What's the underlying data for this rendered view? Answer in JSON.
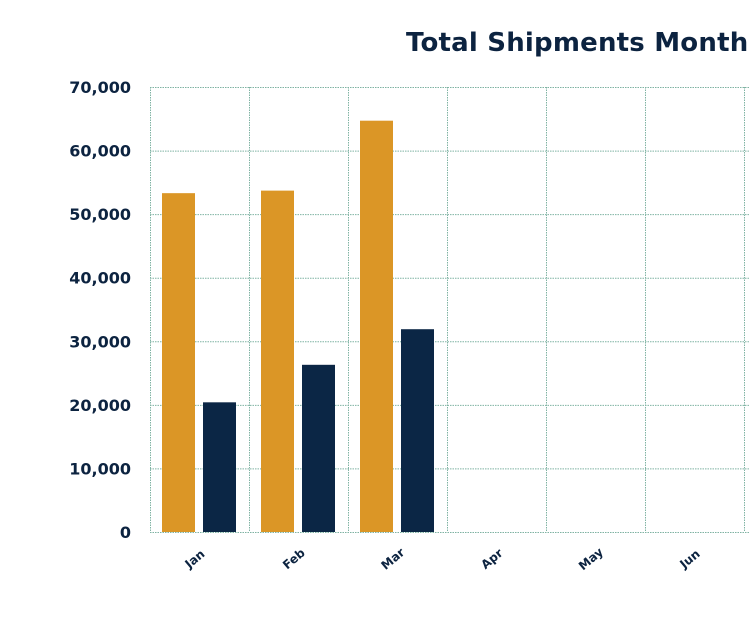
{
  "chart_data": {
    "type": "bar",
    "title": "Total Shipments Month",
    "xlabel": "",
    "ylabel": "",
    "categories": [
      "Jan",
      "Feb",
      "Mar",
      "Apr",
      "May",
      "Jun"
    ],
    "series": [
      {
        "values": [
          53300,
          53700,
          64700,
          null,
          null,
          null
        ]
      },
      {
        "values": [
          20400,
          26300,
          31900,
          null,
          null,
          null
        ]
      }
    ],
    "ylim": [
      0,
      70000
    ],
    "yticks": [
      0,
      10000,
      20000,
      30000,
      40000,
      50000,
      60000,
      70000
    ],
    "ytick_labels": [
      "0",
      "10,000",
      "20,000",
      "30,000",
      "40,000",
      "50,000",
      "60,000",
      "70,000"
    ],
    "grid": true,
    "colors": {
      "series_1": "#db9626",
      "series_2": "#0b2645",
      "grid": "#7fb3a3",
      "text": "#0c2340"
    }
  }
}
